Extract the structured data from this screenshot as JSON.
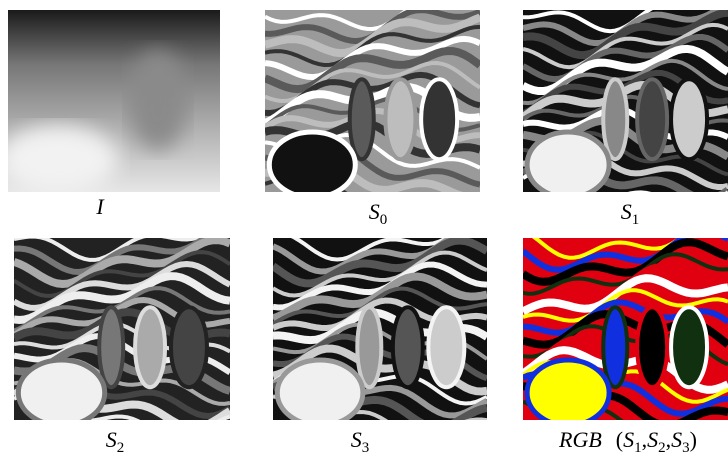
{
  "panels": [
    {
      "caption": {
        "base": "I"
      }
    },
    {
      "caption": {
        "base": "S",
        "sub": "0"
      }
    },
    {
      "caption": {
        "base": "S",
        "sub": "1"
      }
    },
    {
      "caption": {
        "base": "S",
        "sub": "2"
      }
    },
    {
      "caption": {
        "base": "S",
        "sub": "3"
      }
    },
    {
      "caption": {
        "prefix": "RGB",
        "open": "(",
        "sep": ",",
        "close": ")",
        "terms": [
          {
            "base": "S",
            "sub": "1"
          },
          {
            "base": "S",
            "sub": "2"
          },
          {
            "base": "S",
            "sub": "3"
          }
        ]
      }
    }
  ]
}
